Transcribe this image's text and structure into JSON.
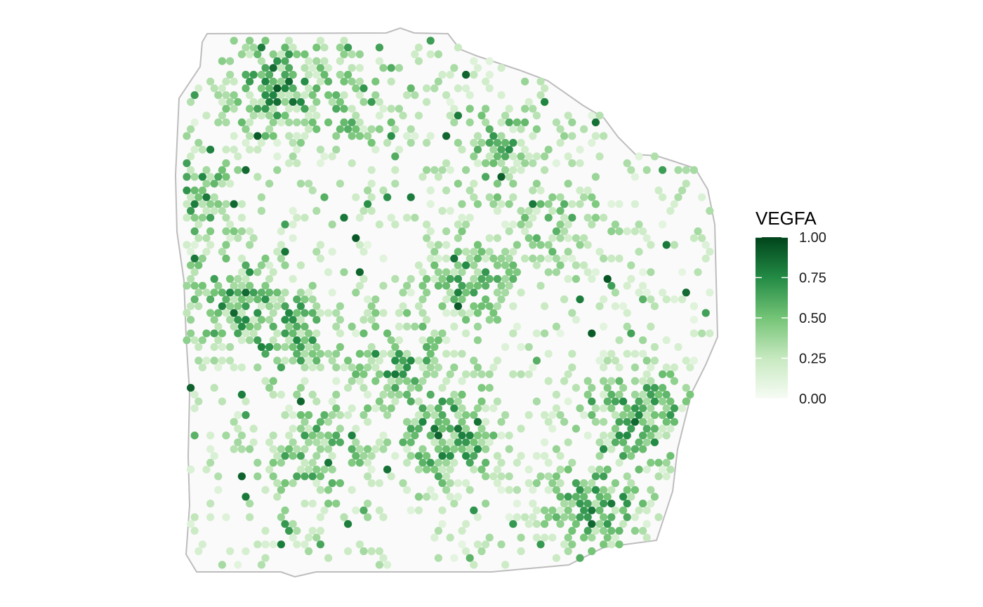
{
  "chart_data": {
    "type": "scatter",
    "subtype": "spatial-hex-spots",
    "title": "",
    "xlabel": "",
    "ylabel": "",
    "legend": {
      "title": "VEGFA",
      "placement": "right",
      "ticks": [
        {
          "value": 1.0,
          "label": "1.00"
        },
        {
          "value": 0.75,
          "label": "0.75"
        },
        {
          "value": 0.5,
          "label": "0.50"
        },
        {
          "value": 0.25,
          "label": "0.25"
        },
        {
          "value": 0.0,
          "label": "0.00"
        }
      ],
      "range": [
        0,
        1
      ]
    },
    "colors": {
      "low": "#f7fcf5",
      "mid_low": "#c7e9c0",
      "mid": "#74c476",
      "mid_high": "#238b45",
      "high": "#00441b",
      "background_spot": "#f7f7f7",
      "outline": "#bdbdbd"
    },
    "grid": false,
    "series": [
      {
        "values_note_free": true,
        "hotspots": [
          {
            "x": 0.18,
            "y": 0.1,
            "value": 0.85
          },
          {
            "x": 0.32,
            "y": 0.12,
            "value": 0.55
          },
          {
            "x": 0.6,
            "y": 0.22,
            "value": 0.55
          },
          {
            "x": 0.02,
            "y": 0.3,
            "value": 0.7
          },
          {
            "x": 0.1,
            "y": 0.5,
            "value": 0.8
          },
          {
            "x": 0.2,
            "y": 0.56,
            "value": 0.7
          },
          {
            "x": 0.4,
            "y": 0.62,
            "value": 0.7
          },
          {
            "x": 0.5,
            "y": 0.75,
            "value": 0.85
          },
          {
            "x": 0.25,
            "y": 0.78,
            "value": 0.65
          },
          {
            "x": 0.86,
            "y": 0.72,
            "value": 0.75
          },
          {
            "x": 0.78,
            "y": 0.88,
            "value": 0.7
          },
          {
            "x": 0.7,
            "y": 0.35,
            "value": 0.45
          },
          {
            "x": 0.55,
            "y": 0.45,
            "value": 0.6
          }
        ]
      }
    ]
  }
}
